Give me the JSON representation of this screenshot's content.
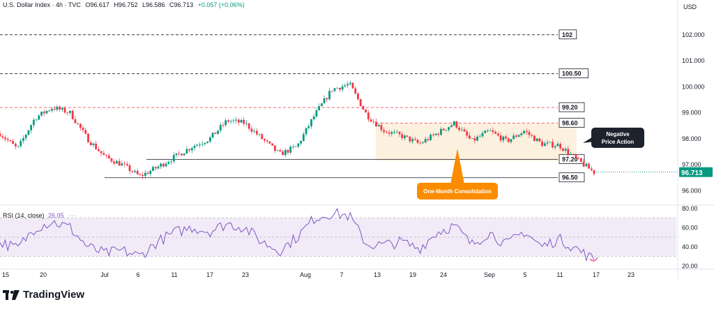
{
  "header": {
    "symbol": "U.S. Dollar Index · 4h · TVC",
    "open": "O96.617",
    "high": "H96.752",
    "low": "L96.586",
    "close": "C96.713",
    "change": "+0.057 (+0.06%)"
  },
  "currency": "USD",
  "rsi_legend": {
    "label": "RSI (14, close)",
    "value": "26.05",
    "dots": "···"
  },
  "brand": {
    "name": "TradingView"
  },
  "colors": {
    "up": "#089981",
    "down": "#f23645",
    "rsi": "#7e57c2",
    "current": "#089981",
    "annotation_bg": "#1e222d",
    "consolidation": "#fb8c00"
  },
  "annotations": {
    "negative_label": [
      "Negative",
      "Price Action"
    ],
    "consolidation_label": "One-Month Consolidation"
  },
  "chart_data": [
    {
      "type": "candlestick",
      "title": "U.S. Dollar Index · 4h · TVC",
      "ylabel": "USD",
      "y_ticks": [
        "96.000",
        "97.000",
        "98.000",
        "99.000",
        "100.000",
        "101.000",
        "102.000"
      ],
      "ylim": [
        95.5,
        102.8
      ],
      "x_ticks": [
        "15",
        "20",
        "Jul",
        "6",
        "11",
        "17",
        "23",
        "Aug",
        "7",
        "13",
        "19",
        "24",
        "Sep",
        "5",
        "11",
        "17",
        "23"
      ],
      "price_path": [
        [
          0,
          98.2
        ],
        [
          1,
          97.6
        ],
        [
          2,
          98.8
        ],
        [
          3,
          99.2
        ],
        [
          4,
          99.0
        ],
        [
          5,
          98.0
        ],
        [
          6,
          97.3
        ],
        [
          7,
          97.0
        ],
        [
          8,
          96.55
        ],
        [
          9,
          96.9
        ],
        [
          10,
          97.3
        ],
        [
          11,
          97.7
        ],
        [
          12,
          98.0
        ],
        [
          13,
          98.7
        ],
        [
          14,
          98.6
        ],
        [
          15,
          98.0
        ],
        [
          16,
          97.4
        ],
        [
          17,
          97.7
        ],
        [
          18,
          98.9
        ],
        [
          19,
          99.9
        ],
        [
          20,
          100.1
        ],
        [
          21,
          98.9
        ],
        [
          22,
          98.3
        ],
        [
          23,
          98.1
        ],
        [
          24,
          97.8
        ],
        [
          25,
          98.2
        ],
        [
          26,
          98.6
        ],
        [
          27,
          97.9
        ],
        [
          28,
          98.3
        ],
        [
          29,
          97.9
        ],
        [
          30,
          98.3
        ],
        [
          31,
          97.8
        ],
        [
          32,
          97.75
        ],
        [
          33,
          97.2
        ],
        [
          34,
          96.71
        ]
      ],
      "levels": [
        {
          "label": "102",
          "value": 102.0,
          "color": "#131722"
        },
        {
          "label": "100.50",
          "value": 100.5,
          "color": "#131722"
        },
        {
          "label": "99.20",
          "value": 99.2,
          "color": "#f23645"
        },
        {
          "label": "98.60",
          "value": 98.6,
          "color": "#f23645"
        },
        {
          "label": "97.20",
          "value": 97.2,
          "color": "#131722"
        },
        {
          "label": "96.50",
          "value": 96.5,
          "color": "#131722"
        }
      ],
      "last_price": {
        "label": "96.713",
        "value": 96.713
      },
      "consolidation_zone": {
        "from_x": 21.5,
        "to_x": 33,
        "low": 97.15,
        "high": 98.6
      }
    },
    {
      "type": "line",
      "title": "RSI (14, close)",
      "y_ticks": [
        "80.00",
        "60.00",
        "40.00",
        "20.00"
      ],
      "ylim": [
        18,
        82
      ],
      "band": [
        30,
        70
      ],
      "last_value": 26.05,
      "rsi_path": [
        [
          0,
          45
        ],
        [
          1,
          38
        ],
        [
          2,
          60
        ],
        [
          3,
          66
        ],
        [
          4,
          60
        ],
        [
          5,
          40
        ],
        [
          6,
          33
        ],
        [
          7,
          36
        ],
        [
          8,
          30
        ],
        [
          9,
          45
        ],
        [
          10,
          55
        ],
        [
          11,
          60
        ],
        [
          12,
          56
        ],
        [
          13,
          64
        ],
        [
          14,
          60
        ],
        [
          15,
          45
        ],
        [
          16,
          36
        ],
        [
          17,
          50
        ],
        [
          18,
          70
        ],
        [
          19,
          75
        ],
        [
          20,
          72
        ],
        [
          21,
          42
        ],
        [
          22,
          42
        ],
        [
          23,
          45
        ],
        [
          24,
          38
        ],
        [
          25,
          55
        ],
        [
          26,
          62
        ],
        [
          27,
          42
        ],
        [
          28,
          55
        ],
        [
          29,
          42
        ],
        [
          30,
          56
        ],
        [
          31,
          40
        ],
        [
          32,
          48
        ],
        [
          33,
          38
        ],
        [
          34,
          26.05
        ]
      ]
    }
  ]
}
